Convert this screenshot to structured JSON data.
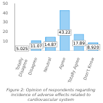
{
  "chart_data": {
    "type": "bar",
    "title": "Figure 2: Opinion of respondents regarding incidence of adverse effects related to\ncardiovascular system",
    "categories": [
      "Totally\nDisagree",
      "Disagree",
      "Neutral",
      "Agree",
      "Totally Agree",
      "Don't Know"
    ],
    "values": [
      5.025,
      11.07,
      14.87,
      43.22,
      17.89,
      8.92
    ],
    "value_labels": [
      "5.025",
      "11.07",
      "14.87",
      "43.22",
      "17.89",
      "8.920"
    ],
    "data_labels": true,
    "ylim": [
      0,
      50
    ],
    "yticks": [
      10,
      20,
      30,
      40,
      50
    ],
    "grid": false
  }
}
